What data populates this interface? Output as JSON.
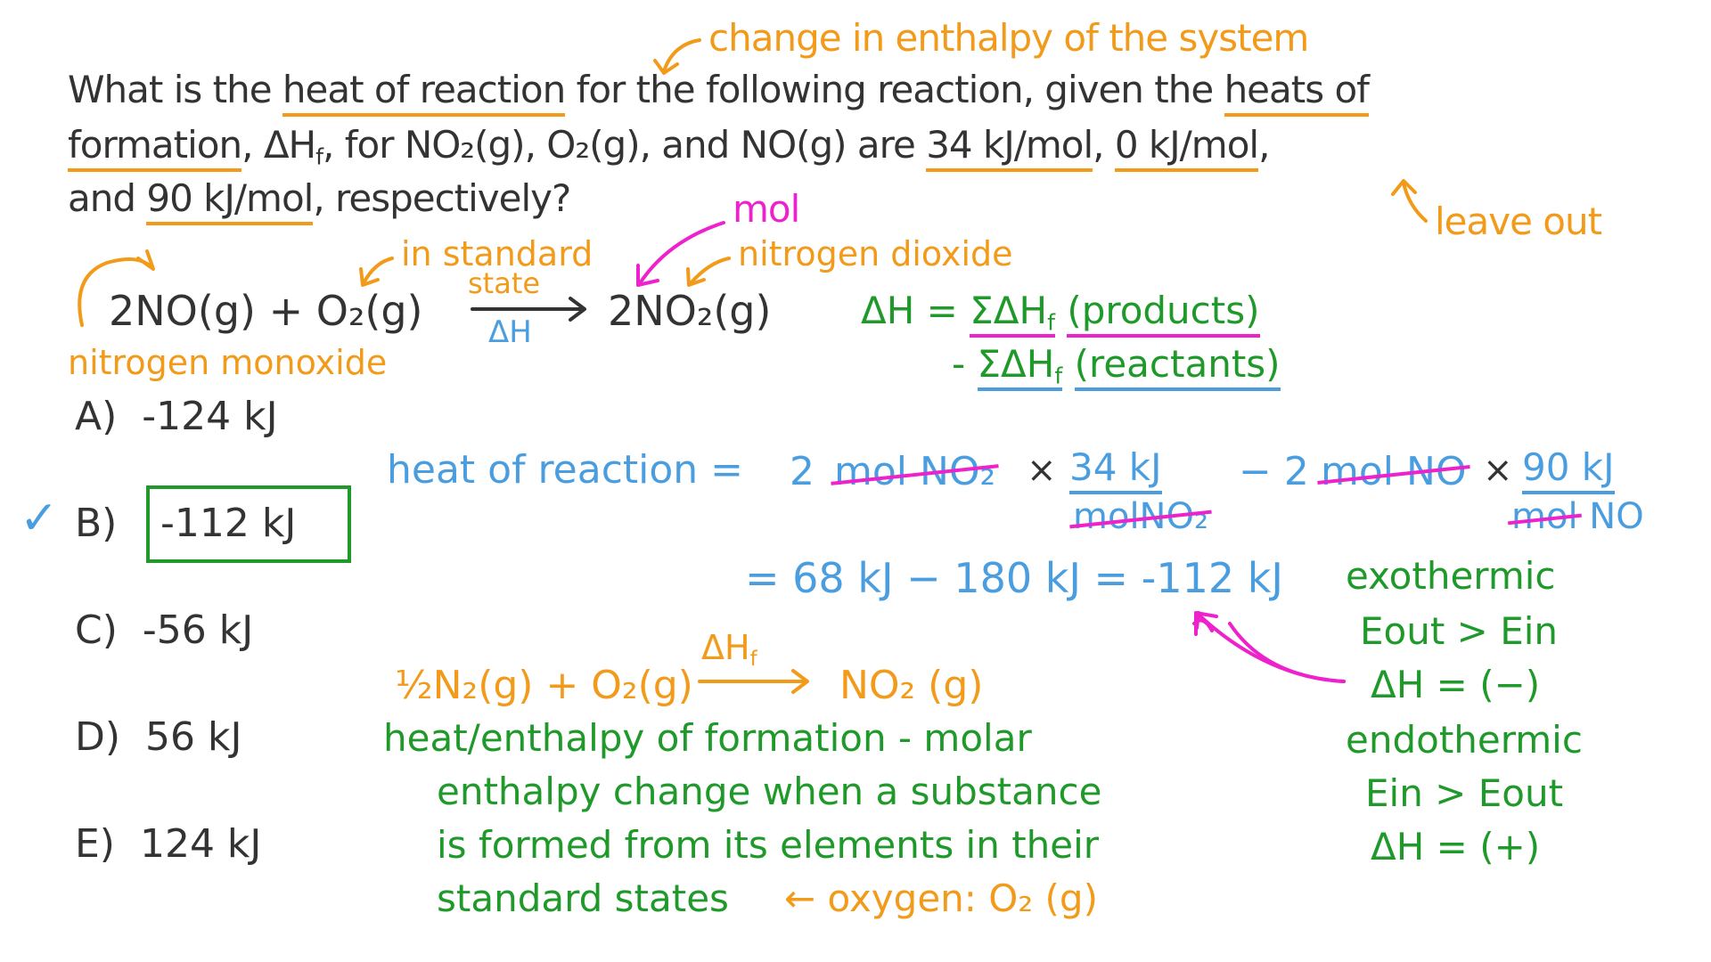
{
  "annotations": {
    "enthalpy_note": "change in enthalpy of the system",
    "leave_out": "leave out",
    "mol": "mol",
    "in_standard": "in standard",
    "state": "state",
    "nitrogen_dioxide": "nitrogen dioxide",
    "nitrogen_monoxide": "nitrogen monoxide"
  },
  "question": {
    "l1_a": "What is the ",
    "l1_b": "heat of reaction",
    "l1_c": " for the following reaction, given the ",
    "l1_d": "heats of",
    "l2_a": "formation",
    "l2_b": ", ΔH",
    "l2_sub": "f",
    "l2_c": ", for NO₂(g), O₂(g), and NO(g) are ",
    "l2_d": "34 kJ/mol",
    "l2_e": ", ",
    "l2_f": "0 kJ/mol",
    "l2_g": ",",
    "l3_a": "and ",
    "l3_b": "90 kJ/mol",
    "l3_c": ", respectively?"
  },
  "reaction": {
    "reactants": "2NO(g) + O₂(g)",
    "arrow_label": "ΔH",
    "products": "2NO₂(g)"
  },
  "formula": {
    "lhs": "ΔH = ",
    "sum1": "ΣΔH",
    "sub": "f",
    "products": "(products)",
    "minus": "- ",
    "sum2": "ΣΔH",
    "reactants": "(reactants)"
  },
  "options": [
    {
      "letter": "A)",
      "value": "-124 kJ"
    },
    {
      "letter": "B)",
      "value": "-112 kJ",
      "correct": true
    },
    {
      "letter": "C)",
      "value": "-56 kJ"
    },
    {
      "letter": "D)",
      "value": "56 kJ"
    },
    {
      "letter": "E)",
      "value": "124 kJ"
    }
  ],
  "check_mark": "✓",
  "calculation": {
    "label": "heat of reaction = ",
    "coef1": "2",
    "unit1": "mol NO₂",
    "times1": "×",
    "num1": "34 kJ",
    "den1": "molNO₂",
    "minus": "− 2",
    "unit2": "mol NO",
    "times2": "×",
    "num2": "90 kJ",
    "den2_struck": "mol",
    "den2_rest": " NO",
    "result": "= 68 kJ − 180 kJ = -112 kJ"
  },
  "thermo": {
    "exothermic": "exothermic",
    "exo_rule": "Eout > Ein",
    "exo_sign": "ΔH = (−)",
    "endothermic": "endothermic",
    "endo_rule": "Ein > Eout",
    "endo_sign": "ΔH = (+)"
  },
  "formation": {
    "reactants": "½N₂(g) + O₂(g)",
    "arrow_label": "ΔH",
    "arrow_sub": "f",
    "product": "NO₂ (g)",
    "def1": "heat/enthalpy of formation - molar",
    "def2": "enthalpy change when a substance",
    "def3": "is formed from its elements in their",
    "def4": "standard states",
    "oxygen": "← oxygen: O₂ (g)"
  },
  "colors": {
    "text": "#333333",
    "orange": "#f29a1a",
    "green": "#1f9a2a",
    "blue": "#4a9ee0",
    "magenta": "#ee22cc"
  }
}
